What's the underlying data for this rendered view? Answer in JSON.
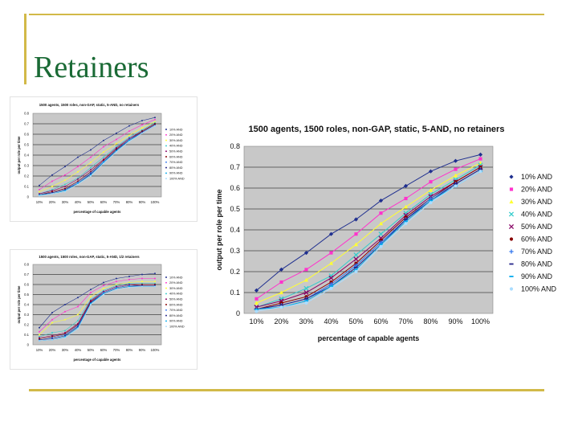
{
  "slide": {
    "title": "Retainers",
    "accent_color": "#d2b948",
    "title_color": "#1a6a35"
  },
  "chart_data": [
    {
      "type": "line",
      "title": "1500 agents, 1500 roles, non-GAP, static, 5-AND, no retainers",
      "xlabel": "percentage of capable agents",
      "ylabel": "output per role per time",
      "categories": [
        "10%",
        "20%",
        "30%",
        "40%",
        "50%",
        "60%",
        "70%",
        "80%",
        "90%",
        "100%"
      ],
      "ylim": [
        0,
        0.8
      ],
      "yticks": [
        "0",
        "0.1",
        "0.2",
        "0.3",
        "0.4",
        "0.5",
        "0.6",
        "0.7",
        "0.8"
      ],
      "legend_position": "right",
      "grid": true,
      "series": [
        {
          "name": "10% AND",
          "color": "#1f2f8f",
          "marker": "diamond",
          "values": [
            0.11,
            0.21,
            0.29,
            0.38,
            0.45,
            0.54,
            0.61,
            0.68,
            0.73,
            0.76
          ]
        },
        {
          "name": "20% AND",
          "color": "#ff33cc",
          "marker": "square",
          "values": [
            0.07,
            0.15,
            0.21,
            0.29,
            0.38,
            0.48,
            0.55,
            0.63,
            0.69,
            0.74
          ]
        },
        {
          "name": "30% AND",
          "color": "#ffff33",
          "marker": "triangle",
          "values": [
            0.05,
            0.1,
            0.16,
            0.24,
            0.33,
            0.43,
            0.51,
            0.59,
            0.66,
            0.72
          ]
        },
        {
          "name": "40% AND",
          "color": "#33cccc",
          "marker": "x",
          "values": [
            0.03,
            0.07,
            0.12,
            0.18,
            0.28,
            0.38,
            0.48,
            0.57,
            0.64,
            0.71
          ]
        },
        {
          "name": "50% AND",
          "color": "#880066",
          "marker": "x",
          "values": [
            0.03,
            0.06,
            0.1,
            0.17,
            0.26,
            0.36,
            0.47,
            0.56,
            0.63,
            0.7
          ]
        },
        {
          "name": "60% AND",
          "color": "#880000",
          "marker": "circle",
          "values": [
            0.02,
            0.05,
            0.08,
            0.15,
            0.24,
            0.35,
            0.46,
            0.55,
            0.63,
            0.7
          ]
        },
        {
          "name": "70% AND",
          "color": "#3377ee",
          "marker": "plus",
          "values": [
            0.02,
            0.04,
            0.07,
            0.14,
            0.23,
            0.34,
            0.45,
            0.55,
            0.62,
            0.69
          ]
        },
        {
          "name": "80% AND",
          "color": "#222288",
          "marker": "dash",
          "values": [
            0.02,
            0.04,
            0.07,
            0.13,
            0.22,
            0.33,
            0.45,
            0.54,
            0.62,
            0.69
          ]
        },
        {
          "name": "90% AND",
          "color": "#00aaee",
          "marker": "dash",
          "values": [
            0.02,
            0.03,
            0.06,
            0.13,
            0.21,
            0.33,
            0.44,
            0.54,
            0.61,
            0.68
          ]
        },
        {
          "name": "100% AND",
          "color": "#aaddff",
          "marker": "circle",
          "values": [
            0.01,
            0.03,
            0.05,
            0.12,
            0.2,
            0.32,
            0.43,
            0.53,
            0.61,
            0.68
          ]
        }
      ]
    },
    {
      "type": "line",
      "title": "1500 agents, 1500 roles, non-GAP, static, 5-AND, no retainers",
      "xlabel": "percentage of capable agents",
      "ylabel": "output per role per time",
      "categories": [
        "10%",
        "20%",
        "30%",
        "40%",
        "50%",
        "60%",
        "70%",
        "80%",
        "90%",
        "100%"
      ],
      "ylim": [
        0,
        0.8
      ],
      "yticks": [
        "0",
        "0.1",
        "0.2",
        "0.3",
        "0.4",
        "0.5",
        "0.6",
        "0.7",
        "0.8"
      ],
      "legend_position": "right",
      "grid": true,
      "series": [
        {
          "name": "10% AND",
          "color": "#1f2f8f",
          "values": [
            0.11,
            0.21,
            0.29,
            0.38,
            0.45,
            0.54,
            0.61,
            0.68,
            0.73,
            0.76
          ]
        },
        {
          "name": "20% AND",
          "color": "#ff33cc",
          "values": [
            0.07,
            0.15,
            0.21,
            0.29,
            0.38,
            0.48,
            0.55,
            0.63,
            0.69,
            0.74
          ]
        },
        {
          "name": "30% AND",
          "color": "#ffff33",
          "values": [
            0.05,
            0.1,
            0.16,
            0.24,
            0.33,
            0.43,
            0.51,
            0.59,
            0.66,
            0.72
          ]
        },
        {
          "name": "40% AND",
          "color": "#33cccc",
          "values": [
            0.03,
            0.07,
            0.12,
            0.18,
            0.28,
            0.38,
            0.48,
            0.57,
            0.64,
            0.71
          ]
        },
        {
          "name": "50% AND",
          "color": "#880066",
          "values": [
            0.03,
            0.06,
            0.1,
            0.17,
            0.26,
            0.36,
            0.47,
            0.56,
            0.63,
            0.7
          ]
        },
        {
          "name": "60% AND",
          "color": "#880000",
          "values": [
            0.02,
            0.05,
            0.08,
            0.15,
            0.24,
            0.35,
            0.46,
            0.55,
            0.63,
            0.7
          ]
        },
        {
          "name": "70% AND",
          "color": "#3377ee",
          "values": [
            0.02,
            0.04,
            0.07,
            0.14,
            0.23,
            0.34,
            0.45,
            0.55,
            0.62,
            0.69
          ]
        },
        {
          "name": "80% AND",
          "color": "#222288",
          "values": [
            0.02,
            0.04,
            0.07,
            0.13,
            0.22,
            0.33,
            0.45,
            0.54,
            0.62,
            0.69
          ]
        },
        {
          "name": "90% AND",
          "color": "#00aaee",
          "values": [
            0.02,
            0.03,
            0.06,
            0.13,
            0.21,
            0.33,
            0.44,
            0.54,
            0.61,
            0.68
          ]
        },
        {
          "name": "100% AND",
          "color": "#aaddff",
          "values": [
            0.01,
            0.03,
            0.05,
            0.12,
            0.2,
            0.32,
            0.43,
            0.53,
            0.61,
            0.68
          ]
        }
      ]
    },
    {
      "type": "line",
      "title": "1500 agents, 1500 roles, non-GAP, static, 5-AND, 1/2 retainers",
      "xlabel": "percentage of capable agents",
      "ylabel": "output per role per time",
      "categories": [
        "10%",
        "20%",
        "30%",
        "40%",
        "50%",
        "60%",
        "70%",
        "80%",
        "90%",
        "100%"
      ],
      "ylim": [
        0,
        0.8
      ],
      "yticks": [
        "0",
        "0.1",
        "0.2",
        "0.3",
        "0.4",
        "0.5",
        "0.6",
        "0.7",
        "0.8"
      ],
      "legend_position": "right",
      "grid": true,
      "series": [
        {
          "name": "10% AND",
          "color": "#1f2f8f",
          "values": [
            0.17,
            0.32,
            0.4,
            0.47,
            0.55,
            0.62,
            0.66,
            0.68,
            0.7,
            0.71
          ]
        },
        {
          "name": "20% AND",
          "color": "#ff33cc",
          "values": [
            0.13,
            0.25,
            0.33,
            0.38,
            0.52,
            0.59,
            0.63,
            0.65,
            0.66,
            0.66
          ]
        },
        {
          "name": "30% AND",
          "color": "#ffff33",
          "values": [
            0.1,
            0.22,
            0.25,
            0.3,
            0.48,
            0.56,
            0.6,
            0.62,
            0.63,
            0.63
          ]
        },
        {
          "name": "40% AND",
          "color": "#33cccc",
          "values": [
            0.08,
            0.12,
            0.14,
            0.24,
            0.45,
            0.54,
            0.59,
            0.61,
            0.61,
            0.61
          ]
        },
        {
          "name": "50% AND",
          "color": "#880066",
          "values": [
            0.07,
            0.09,
            0.12,
            0.21,
            0.44,
            0.53,
            0.58,
            0.6,
            0.6,
            0.6
          ]
        },
        {
          "name": "60% AND",
          "color": "#880000",
          "values": [
            0.06,
            0.08,
            0.11,
            0.2,
            0.43,
            0.52,
            0.57,
            0.59,
            0.6,
            0.6
          ]
        },
        {
          "name": "70% AND",
          "color": "#3377ee",
          "values": [
            0.05,
            0.07,
            0.1,
            0.19,
            0.42,
            0.52,
            0.57,
            0.59,
            0.59,
            0.59
          ]
        },
        {
          "name": "80% AND",
          "color": "#222288",
          "values": [
            0.05,
            0.06,
            0.09,
            0.18,
            0.42,
            0.51,
            0.56,
            0.58,
            0.59,
            0.59
          ]
        },
        {
          "name": "90% AND",
          "color": "#00aaee",
          "values": [
            0.04,
            0.05,
            0.08,
            0.17,
            0.41,
            0.51,
            0.56,
            0.58,
            0.58,
            0.58
          ]
        },
        {
          "name": "100% AND",
          "color": "#aaddff",
          "values": [
            0.04,
            0.05,
            0.07,
            0.16,
            0.4,
            0.5,
            0.55,
            0.57,
            0.58,
            0.58
          ]
        }
      ]
    }
  ]
}
